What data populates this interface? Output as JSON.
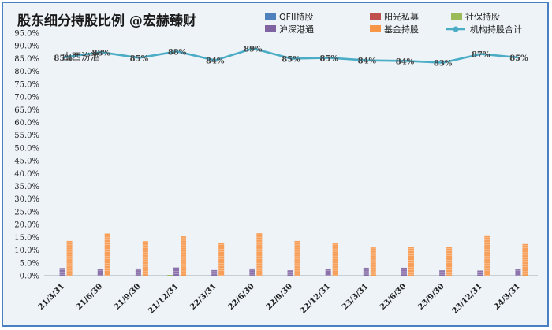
{
  "chart_data": {
    "type": "bar",
    "title": "股东细分持股比例 @宏赫臻财",
    "watermark": "山西汾酒",
    "categories": [
      "21/3/31",
      "21/6/30",
      "21/9/30",
      "21/12/31",
      "22/3/31",
      "22/6/30",
      "22/9/30",
      "22/12/31",
      "23/3/31",
      "23/6/30",
      "23/9/30",
      "23/12/31",
      "24/3/31"
    ],
    "ylim": [
      0,
      95
    ],
    "y_ticks": [
      "0.0%",
      "5.0%",
      "10.0%",
      "15.0%",
      "20.0%",
      "25.0%",
      "30.0%",
      "35.0%",
      "40.0%",
      "45.0%",
      "50.0%",
      "55.0%",
      "60.0%",
      "65.0%",
      "70.0%",
      "75.0%",
      "80.0%",
      "85.0%",
      "90.0%",
      "95.0%"
    ],
    "grid": false,
    "legend_position": "top-right",
    "series": [
      {
        "name": "QFII持股",
        "kind": "bar",
        "color": "#4f81bd",
        "values": [
          0,
          0,
          0,
          0,
          0,
          0,
          0,
          0,
          0,
          0,
          0,
          0,
          0
        ]
      },
      {
        "name": "阳光私募",
        "kind": "bar",
        "color": "#c0504d",
        "values": [
          0,
          0,
          0,
          0,
          0,
          0,
          0,
          0,
          0,
          0,
          0,
          0,
          0
        ]
      },
      {
        "name": "社保持股",
        "kind": "bar",
        "color": "#9bbb59",
        "values": [
          0,
          0,
          0,
          0.3,
          0,
          0,
          0,
          0,
          0,
          0,
          0,
          0,
          0
        ]
      },
      {
        "name": "沪深港通",
        "kind": "bar",
        "color": "#8064a2",
        "values": [
          3.0,
          2.7,
          2.8,
          3.2,
          2.2,
          2.8,
          2.1,
          2.6,
          3.1,
          3.1,
          2.1,
          2.0,
          2.7
        ]
      },
      {
        "name": "基金持股",
        "kind": "bar",
        "color": "#f79646",
        "values": [
          13.6,
          16.5,
          13.5,
          15.4,
          12.8,
          16.6,
          13.6,
          12.9,
          11.4,
          11.3,
          11.2,
          15.5,
          12.4
        ]
      },
      {
        "name": "机构持股合计",
        "kind": "line",
        "color": "#4bacc6",
        "values": [
          85.5,
          87.5,
          85.3,
          87.8,
          84.3,
          89.0,
          85.0,
          85.3,
          84.3,
          84.1,
          83.4,
          86.8,
          85.4
        ]
      }
    ],
    "data_labels": [
      "85%",
      "88%",
      "85%",
      "88%",
      "84%",
      "89%",
      "85%",
      "85%",
      "84%",
      "84%",
      "83%",
      "87%",
      "85%"
    ]
  }
}
